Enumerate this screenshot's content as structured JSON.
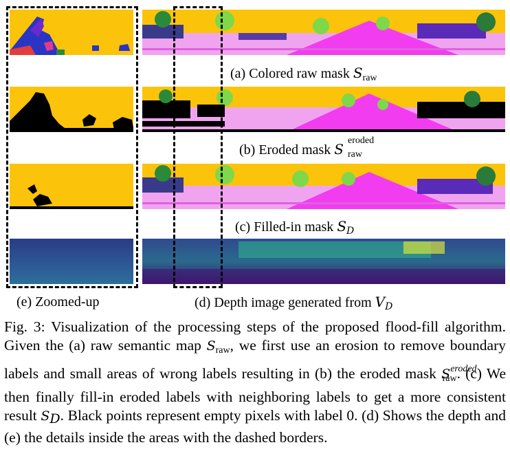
{
  "panels": {
    "a": {
      "label": "(a) Colored raw mask ",
      "symbol": "S",
      "sub": "raw"
    },
    "b": {
      "label": "(b) Eroded mask ",
      "symbol": "S",
      "sup": "eroded",
      "sub": "raw"
    },
    "c": {
      "label": "(c) Filled-in mask ",
      "symbol": "S",
      "sub": "D"
    },
    "d": {
      "label": "(d) Depth image generated from ",
      "symbol": "V",
      "sub": "D"
    },
    "e": {
      "label": "(e) Zoomed-up"
    }
  },
  "figure_caption": {
    "prefix": "Fig. 3: Visualization of the processing steps of the proposed flood-fill algorithm. Given the (a) raw semantic map ",
    "s_raw": "S",
    "s_raw_sub": "raw",
    "mid1": ", we first use an erosion to remove boundary labels and small areas of wrong labels resulting in (b) the eroded mask ",
    "s_eroded": "S",
    "s_eroded_sup": "eroded",
    "s_eroded_sub": "raw",
    "mid2": ". (c) We then finally fill-in eroded labels with neighboring labels to get a more consistent result ",
    "s_d": "S",
    "s_d_sub": "D",
    "suffix": ". Black points represent empty pixels with label 0. (d) Shows the depth and (e) the details inside the areas with the dashed borders."
  },
  "colors": {
    "sky": "#fbc30a",
    "road": "#f23cf0",
    "sidewalk": "#f0a4f0",
    "tree": "#7ed84a",
    "empty": "#000000",
    "depth_far": "#2f4a8f",
    "depth_near": "#44116c"
  }
}
